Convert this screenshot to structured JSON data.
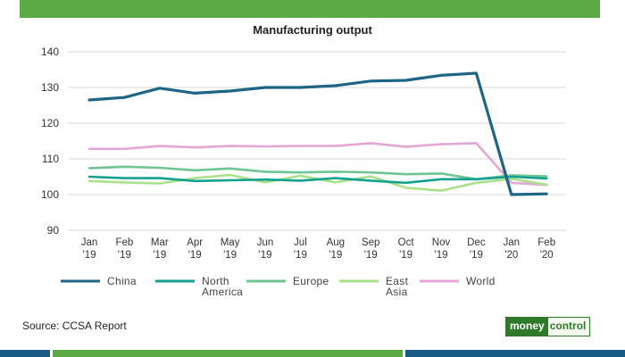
{
  "header": {
    "title": "Manufacturing output"
  },
  "footer": {
    "source": "Source: CCSA Report",
    "logo_part1": "money",
    "logo_part2": "control"
  },
  "colors": {
    "brand_green": "#5aaa46",
    "brand_blue": "#1a5b86"
  },
  "chart_data": {
    "type": "line",
    "title": "Manufacturing output",
    "xlabel": "",
    "ylabel": "",
    "ylim": [
      90,
      140
    ],
    "yticks": [
      90,
      100,
      110,
      120,
      130,
      140
    ],
    "grid": true,
    "legend_position": "bottom",
    "categories": [
      [
        "Jan",
        "'19"
      ],
      [
        "Feb",
        "'19"
      ],
      [
        "Mar",
        "'19"
      ],
      [
        "Apr",
        "'19"
      ],
      [
        "May",
        "'19"
      ],
      [
        "Jun",
        "'19"
      ],
      [
        "Jul",
        "'19"
      ],
      [
        "Aug",
        "'19"
      ],
      [
        "Sep",
        "'19"
      ],
      [
        "Oct",
        "'19"
      ],
      [
        "Nov",
        "'19"
      ],
      [
        "Dec",
        "'19"
      ],
      [
        "Jan",
        "'20"
      ],
      [
        "Feb",
        "'20"
      ]
    ],
    "series": [
      {
        "name": [
          "China"
        ],
        "color": "#1d6485",
        "width": 3.2,
        "values": [
          126.5,
          127.2,
          129.8,
          128.4,
          129,
          130,
          130,
          130.5,
          131.8,
          132,
          133.4,
          134,
          100,
          100.2
        ]
      },
      {
        "name": [
          "North",
          "America"
        ],
        "color": "#15a18f",
        "width": 2.6,
        "values": [
          105,
          104.6,
          104.6,
          103.8,
          104,
          104.2,
          103.9,
          104.6,
          103.9,
          103.3,
          104.3,
          104.3,
          105,
          104.5
        ]
      },
      {
        "name": [
          "Europe"
        ],
        "color": "#6dc592",
        "width": 2.6,
        "values": [
          107.4,
          107.8,
          107.5,
          106.8,
          107.3,
          106.4,
          106.2,
          106.4,
          106.2,
          105.7,
          105.9,
          104.3,
          105.4,
          105.1
        ]
      },
      {
        "name": [
          "East",
          "Asia"
        ],
        "color": "#a9e28a",
        "width": 2.6,
        "values": [
          103.8,
          103.4,
          103.1,
          104.6,
          105.5,
          103.4,
          105.3,
          103.4,
          105.1,
          101.9,
          101.1,
          103.3,
          104.4,
          102.8
        ]
      },
      {
        "name": [
          "World"
        ],
        "color": "#e3a6d6",
        "width": 2.6,
        "values": [
          112.8,
          112.8,
          113.6,
          113.2,
          113.6,
          113.5,
          113.6,
          113.6,
          114.4,
          113.4,
          114.1,
          114.4,
          103.3,
          102.7
        ]
      }
    ]
  }
}
